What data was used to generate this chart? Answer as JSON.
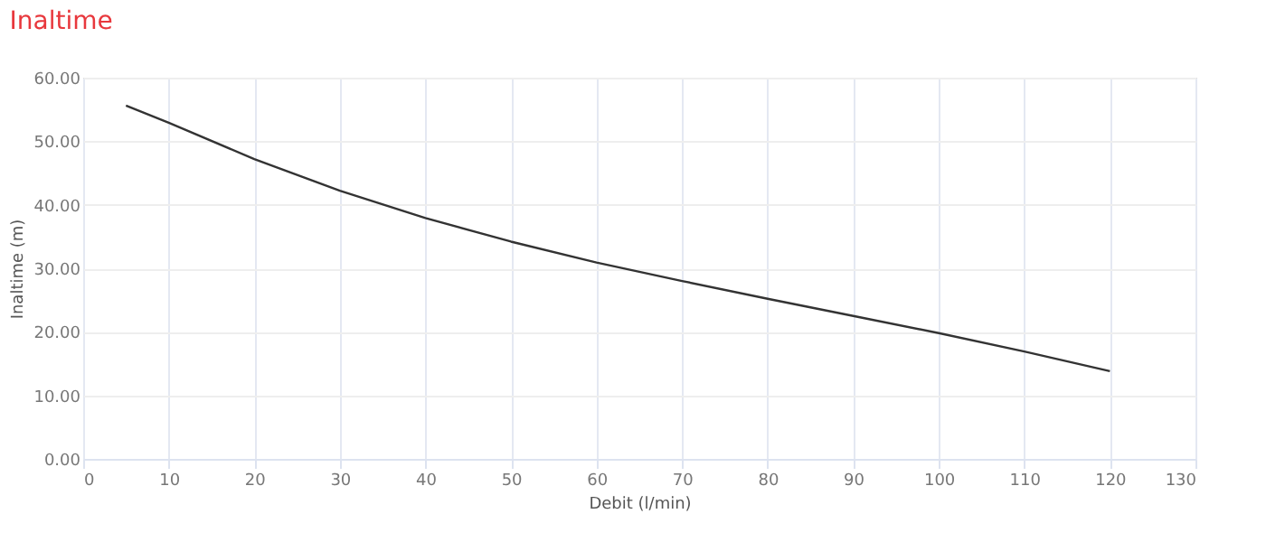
{
  "chart_data": {
    "type": "line",
    "title": "Inaltime",
    "xlabel": "Debit (l/min)",
    "ylabel": "Inaltime (m)",
    "x": [
      5,
      10,
      20,
      30,
      40,
      50,
      60,
      70,
      80,
      90,
      100,
      110,
      120
    ],
    "series": [
      {
        "color": "#333333",
        "values": [
          55.6,
          52.9,
          47.2,
          42.2,
          37.9,
          34.2,
          30.9,
          28.0,
          25.2,
          22.5,
          19.8,
          16.9,
          13.8
        ]
      }
    ],
    "xlim": [
      0,
      130
    ],
    "xticks": [
      0,
      10,
      20,
      30,
      40,
      50,
      60,
      70,
      80,
      90,
      100,
      110,
      120,
      130
    ],
    "ylim": [
      0,
      60
    ],
    "yticks": [
      {
        "value": 0,
        "label": "0.00"
      },
      {
        "value": 10,
        "label": "10.00"
      },
      {
        "value": 20,
        "label": "20.00"
      },
      {
        "value": 30,
        "label": "30.00"
      },
      {
        "value": 40,
        "label": "40.00"
      },
      {
        "value": 50,
        "label": "50.00"
      },
      {
        "value": 60,
        "label": "60.00"
      }
    ],
    "grid": true,
    "marker": "none",
    "line_style": "solid"
  }
}
